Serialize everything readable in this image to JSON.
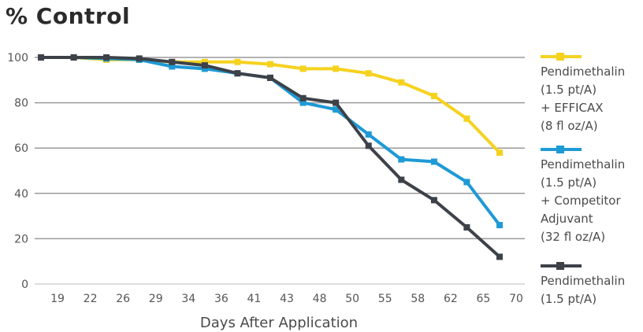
{
  "title": "% Control",
  "chart_data": {
    "type": "line",
    "title": "% Control",
    "xlabel": "Days After Application",
    "ylabel": "",
    "ylim": [
      0,
      100
    ],
    "yticks": [
      0,
      20,
      40,
      60,
      80,
      100
    ],
    "categories": [
      "19",
      "22",
      "26",
      "29",
      "34",
      "36",
      "41",
      "43",
      "48",
      "50",
      "55",
      "58",
      "62",
      "65",
      "70"
    ],
    "x": [
      0,
      1,
      2,
      3,
      4,
      5,
      6,
      7,
      8,
      9,
      10,
      11,
      12,
      13,
      14
    ],
    "grid": true,
    "legend_position": "right",
    "series": [
      {
        "name": "Pendimethalin (1.5 pt/A) + EFFICAX (8 fl oz/A)",
        "color": "#f5d21f",
        "x": [
          0,
          1,
          2,
          3,
          4,
          5,
          6,
          7,
          8,
          9,
          10,
          11,
          12,
          13,
          14
        ],
        "values": [
          100,
          100,
          99,
          99,
          98,
          98,
          98,
          97,
          95,
          95,
          93,
          89,
          83,
          73,
          58
        ]
      },
      {
        "name": "Pendimethalin (1.5 pt/A) + Competitor Adjuvant (32 fl oz/A)",
        "color": "#1e9ad6",
        "x": [
          0,
          1,
          2,
          3,
          4,
          5,
          6,
          7,
          8,
          9,
          10,
          11,
          12,
          13,
          14
        ],
        "values": [
          100,
          100,
          99.5,
          99,
          96,
          95,
          93,
          91,
          80,
          77,
          66,
          55,
          54,
          45,
          26
        ]
      },
      {
        "name": "Pendimethalin (1.5 pt/A)",
        "color": "#3d4248",
        "x": [
          0,
          1,
          2,
          3,
          4,
          5,
          6,
          7,
          8,
          9,
          10,
          11,
          12,
          13,
          14
        ],
        "values": [
          100,
          100,
          100,
          99.5,
          98,
          96.5,
          93,
          91,
          82,
          80,
          61,
          46,
          37,
          25,
          12
        ]
      }
    ]
  },
  "legend": {
    "items": [
      {
        "label": "Pendimethalin (1.5 pt/A) + EFFICAX (8 fl oz/A)",
        "lines": [
          "Pendimethalin",
          "(1.5 pt/A)",
          "+ EFFICAX",
          "(8 fl oz/A)"
        ]
      },
      {
        "label": "Pendimethalin (1.5 pt/A) + Competitor Adjuvant (32 fl oz/A)",
        "lines": [
          "Pendimethalin",
          "(1.5 pt/A)",
          "+ Competitor",
          "Adjuvant",
          "(32 fl oz/A)"
        ]
      },
      {
        "label": "Pendimethalin (1.5 pt/A)",
        "lines": [
          "Pendimethalin",
          "(1.5 pt/A)"
        ]
      }
    ]
  }
}
